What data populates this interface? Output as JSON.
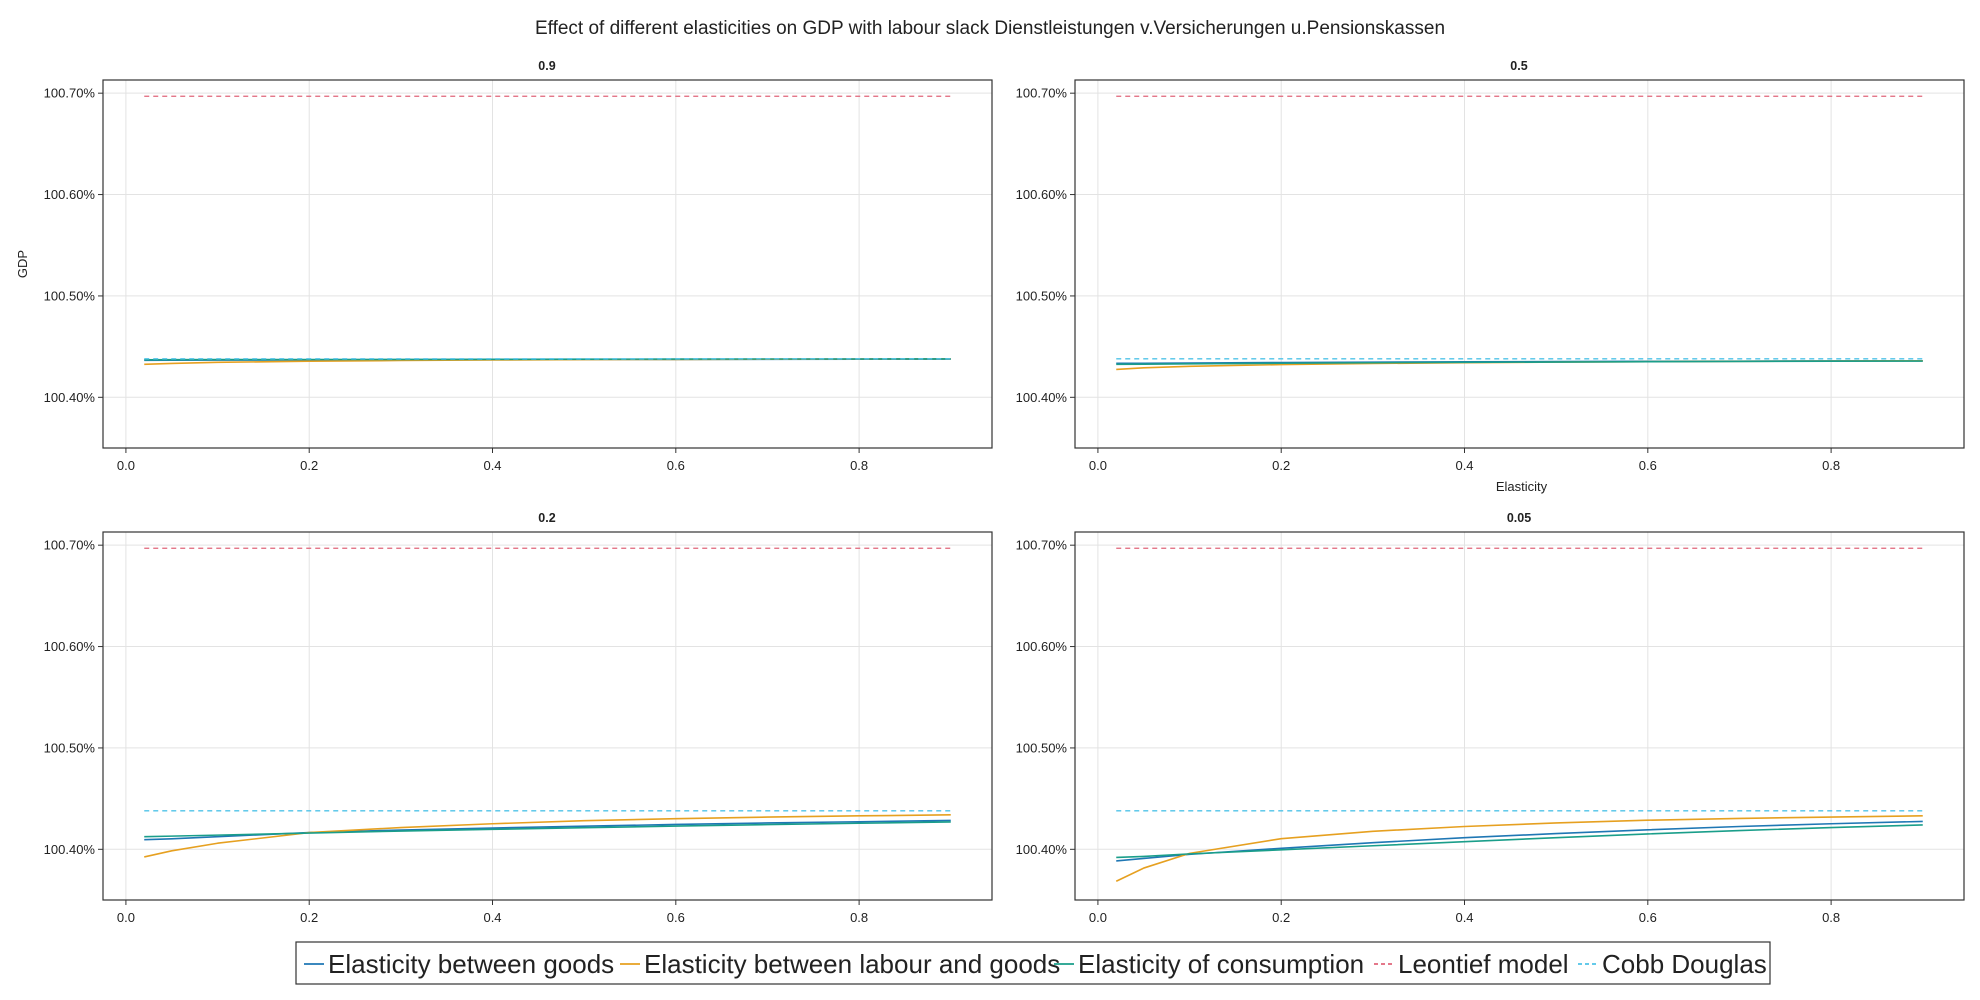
{
  "figure": {
    "title": "Effect of different elasticities on GDP with labour slack Dienstleistungen v.Versicherungen u.Pensionskassen"
  },
  "chart_data": [
    {
      "type": "line",
      "title": "0.9",
      "xlabel": "",
      "ylabel": "GDP",
      "xlim": [
        -0.025,
        0.945
      ],
      "ylim": [
        100.35,
        100.713
      ],
      "xticks": [
        "0.0",
        "0.2",
        "0.4",
        "0.6",
        "0.8"
      ],
      "yticks": [
        "100.40%",
        "100.50%",
        "100.60%",
        "100.70%"
      ],
      "grid": true,
      "x": [
        0.02,
        0.05,
        0.1,
        0.2,
        0.3,
        0.4,
        0.5,
        0.6,
        0.7,
        0.8,
        0.9
      ],
      "series": [
        {
          "name": "Elasticity between goods",
          "color": "#1f77b4",
          "style": "solid",
          "values": [
            100.4365,
            100.4366,
            100.4367,
            100.4369,
            100.437,
            100.4372,
            100.4373,
            100.4374,
            100.4375,
            100.4376,
            100.4377
          ]
        },
        {
          "name": "Elasticity between labour and goods",
          "color": "#e6a020",
          "style": "solid",
          "values": [
            100.4325,
            100.4334,
            100.4345,
            100.4356,
            100.4363,
            100.4368,
            100.4372,
            100.4374,
            100.4376,
            100.4378,
            100.438
          ]
        },
        {
          "name": "Elasticity of consumption",
          "color": "#1a9e8a",
          "style": "solid",
          "values": [
            100.437,
            100.4371,
            100.4372,
            100.4373,
            100.4374,
            100.4375,
            100.4376,
            100.4377,
            100.4378,
            100.4378,
            100.4379
          ]
        },
        {
          "name": "Leontief model",
          "color": "#e0657a",
          "style": "dashed",
          "values": [
            100.697,
            100.697,
            100.697,
            100.697,
            100.697,
            100.697,
            100.697,
            100.697,
            100.697,
            100.697,
            100.697
          ]
        },
        {
          "name": "Cobb Douglas",
          "color": "#4fc3e8",
          "style": "dashed",
          "values": [
            100.438,
            100.438,
            100.438,
            100.438,
            100.438,
            100.438,
            100.438,
            100.438,
            100.438,
            100.438,
            100.438
          ]
        }
      ]
    },
    {
      "type": "line",
      "title": "0.5",
      "xlabel": "Elasticity",
      "ylabel": "",
      "xlim": [
        -0.025,
        0.945
      ],
      "ylim": [
        100.35,
        100.713
      ],
      "xticks": [
        "0.0",
        "0.2",
        "0.4",
        "0.6",
        "0.8"
      ],
      "yticks": [
        "100.40%",
        "100.50%",
        "100.60%",
        "100.70%"
      ],
      "grid": true,
      "x": [
        0.02,
        0.05,
        0.1,
        0.2,
        0.3,
        0.4,
        0.5,
        0.6,
        0.7,
        0.8,
        0.9
      ],
      "series": [
        {
          "name": "Elasticity between goods",
          "color": "#1f77b4",
          "style": "solid",
          "values": [
            100.4335,
            100.4336,
            100.4338,
            100.4343,
            100.4347,
            100.435,
            100.4353,
            100.4355,
            100.4357,
            100.4359,
            100.436
          ]
        },
        {
          "name": "Elasticity between labour and goods",
          "color": "#e6a020",
          "style": "solid",
          "values": [
            100.4275,
            100.4291,
            100.4306,
            100.4323,
            100.4334,
            100.4341,
            100.4347,
            100.4351,
            100.4355,
            100.4358,
            100.436
          ]
        },
        {
          "name": "Elasticity of consumption",
          "color": "#1a9e8a",
          "style": "solid",
          "values": [
            100.4325,
            100.4327,
            100.433,
            100.4336,
            100.4341,
            100.4345,
            100.4348,
            100.4351,
            100.4354,
            100.4356,
            100.4358
          ]
        },
        {
          "name": "Leontief model",
          "color": "#e0657a",
          "style": "dashed",
          "values": [
            100.697,
            100.697,
            100.697,
            100.697,
            100.697,
            100.697,
            100.697,
            100.697,
            100.697,
            100.697,
            100.697
          ]
        },
        {
          "name": "Cobb Douglas",
          "color": "#4fc3e8",
          "style": "dashed",
          "values": [
            100.438,
            100.438,
            100.438,
            100.438,
            100.438,
            100.438,
            100.438,
            100.438,
            100.438,
            100.438,
            100.438
          ]
        }
      ]
    },
    {
      "type": "line",
      "title": "0.2",
      "xlabel": "",
      "ylabel": "",
      "xlim": [
        -0.025,
        0.945
      ],
      "ylim": [
        100.35,
        100.713
      ],
      "xticks": [
        "0.0",
        "0.2",
        "0.4",
        "0.6",
        "0.8"
      ],
      "yticks": [
        "100.40%",
        "100.50%",
        "100.60%",
        "100.70%"
      ],
      "grid": true,
      "x": [
        0.02,
        0.05,
        0.1,
        0.2,
        0.3,
        0.4,
        0.5,
        0.6,
        0.7,
        0.8,
        0.9
      ],
      "series": [
        {
          "name": "Elasticity between goods",
          "color": "#1f77b4",
          "style": "solid",
          "values": [
            100.4095,
            100.4104,
            100.4125,
            100.4165,
            100.419,
            100.421,
            100.4228,
            100.4245,
            100.426,
            100.4272,
            100.4285
          ]
        },
        {
          "name": "Elasticity between labour and goods",
          "color": "#e6a020",
          "style": "solid",
          "values": [
            100.3925,
            100.3985,
            100.406,
            100.4165,
            100.4215,
            100.4252,
            100.4282,
            100.4302,
            100.4318,
            100.433,
            100.434
          ]
        },
        {
          "name": "Elasticity of consumption",
          "color": "#1a9e8a",
          "style": "solid",
          "values": [
            100.4125,
            100.413,
            100.414,
            100.416,
            100.418,
            100.4197,
            100.4213,
            100.4229,
            100.4244,
            100.4257,
            100.427
          ]
        },
        {
          "name": "Leontief model",
          "color": "#e0657a",
          "style": "dashed",
          "values": [
            100.697,
            100.697,
            100.697,
            100.697,
            100.697,
            100.697,
            100.697,
            100.697,
            100.697,
            100.697,
            100.697
          ]
        },
        {
          "name": "Cobb Douglas",
          "color": "#4fc3e8",
          "style": "dashed",
          "values": [
            100.438,
            100.438,
            100.438,
            100.438,
            100.438,
            100.438,
            100.438,
            100.438,
            100.438,
            100.438,
            100.438
          ]
        }
      ]
    },
    {
      "type": "line",
      "title": "0.05",
      "xlabel": "",
      "ylabel": "",
      "xlim": [
        -0.025,
        0.945
      ],
      "ylim": [
        100.35,
        100.713
      ],
      "xticks": [
        "0.0",
        "0.2",
        "0.4",
        "0.6",
        "0.8"
      ],
      "yticks": [
        "100.40%",
        "100.50%",
        "100.60%",
        "100.70%"
      ],
      "grid": true,
      "x": [
        0.02,
        0.05,
        0.1,
        0.2,
        0.3,
        0.4,
        0.5,
        0.6,
        0.7,
        0.8,
        0.9
      ],
      "series": [
        {
          "name": "Elasticity between goods",
          "color": "#1f77b4",
          "style": "solid",
          "values": [
            100.3885,
            100.391,
            100.395,
            100.401,
            100.4065,
            100.4115,
            100.4155,
            100.4192,
            100.4225,
            100.4252,
            100.4275
          ]
        },
        {
          "name": "Elasticity between labour and goods",
          "color": "#e6a020",
          "style": "solid",
          "values": [
            100.3685,
            100.3815,
            100.396,
            100.4105,
            100.4178,
            100.4225,
            100.426,
            100.4287,
            100.4305,
            100.4318,
            100.433
          ]
        },
        {
          "name": "Elasticity of consumption",
          "color": "#1a9e8a",
          "style": "solid",
          "values": [
            100.392,
            100.393,
            100.3955,
            100.3995,
            100.4035,
            100.4075,
            100.4115,
            100.4152,
            100.4185,
            100.4215,
            100.424
          ]
        },
        {
          "name": "Leontief model",
          "color": "#e0657a",
          "style": "dashed",
          "values": [
            100.697,
            100.697,
            100.697,
            100.697,
            100.697,
            100.697,
            100.697,
            100.697,
            100.697,
            100.697,
            100.697
          ]
        },
        {
          "name": "Cobb Douglas",
          "color": "#4fc3e8",
          "style": "dashed",
          "values": [
            100.438,
            100.438,
            100.438,
            100.438,
            100.438,
            100.438,
            100.438,
            100.438,
            100.438,
            100.438,
            100.438
          ]
        }
      ]
    }
  ],
  "legend": {
    "placement": "bottom-center",
    "items": [
      {
        "label": "Elasticity between goods",
        "color": "#1f77b4",
        "style": "solid"
      },
      {
        "label": "Elasticity between labour and goods",
        "color": "#e6a020",
        "style": "solid"
      },
      {
        "label": "Elasticity of consumption",
        "color": "#1a9e8a",
        "style": "solid"
      },
      {
        "label": "Leontief model",
        "color": "#e0657a",
        "style": "dashed"
      },
      {
        "label": "Cobb Douglas",
        "color": "#4fc3e8",
        "style": "dashed"
      }
    ]
  }
}
